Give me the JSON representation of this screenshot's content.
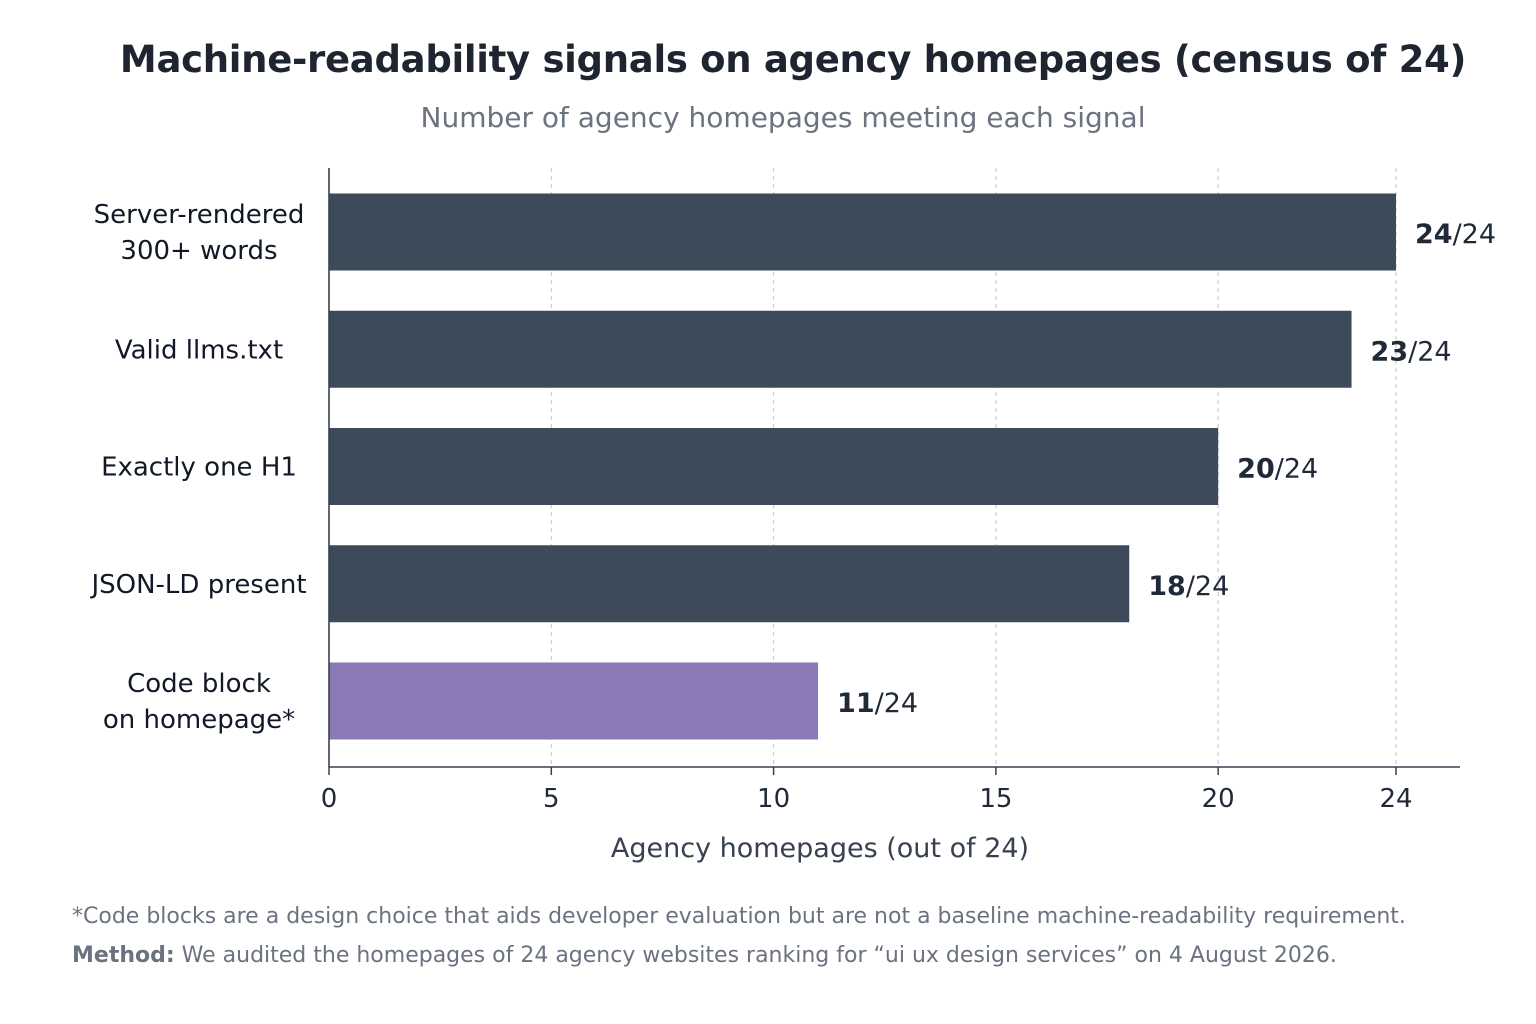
{
  "chart_data": {
    "type": "bar",
    "orientation": "horizontal",
    "title": "Machine-readability signals on agency homepages (census of 24)",
    "subtitle": "Number of agency homepages meeting each signal",
    "xlabel": "Agency homepages (out of 24)",
    "ylabel": "",
    "xlim": [
      0,
      24
    ],
    "xticks": [
      0,
      5,
      10,
      15,
      20,
      24
    ],
    "grid": "vertical-dashed",
    "categories": [
      [
        "Server-rendered",
        "300+ words"
      ],
      [
        "Valid llms.txt"
      ],
      [
        "Exactly one H1"
      ],
      [
        "JSON-LD present"
      ],
      [
        "Code block",
        "on homepage*"
      ]
    ],
    "values": [
      24,
      23,
      20,
      18,
      11
    ],
    "total": "24",
    "value_label_suffix": "/24",
    "colors": [
      "#3d4a5a",
      "#3d4a5a",
      "#3d4a5a",
      "#3d4a5a",
      "#8b78b6"
    ],
    "axis_color": "#374151",
    "grid_color": "#c9cdd3"
  },
  "footnote": "*Code blocks are a design choice that aids developer evaluation but are not a baseline machine-readability requirement.",
  "method_label": "Method:",
  "method_text": " We audited the homepages of 24 agency websites ranking for “ui ux design services” on 4 August 2026."
}
